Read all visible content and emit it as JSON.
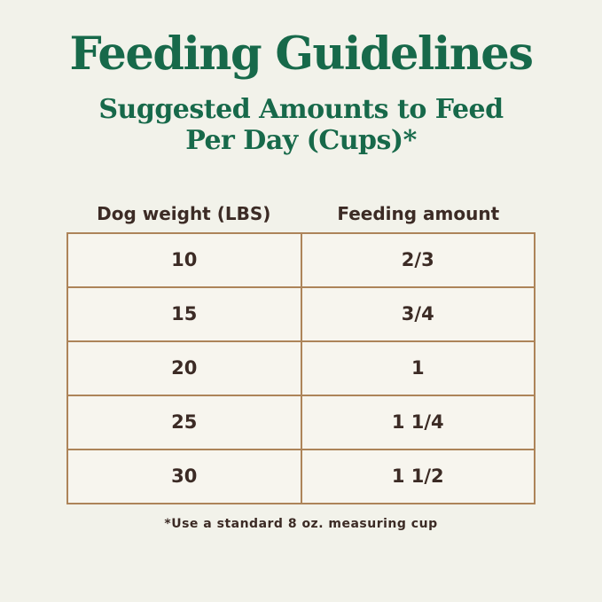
{
  "header": {
    "title": "Feeding Guidelines",
    "subtitle_line1": "Suggested Amounts to Feed",
    "subtitle_line2": "Per Day (Cups)*"
  },
  "table": {
    "columns": [
      "Dog weight (LBS)",
      "Feeding amount"
    ],
    "rows": [
      {
        "weight": "10",
        "amount": "2/3"
      },
      {
        "weight": "15",
        "amount": "3/4"
      },
      {
        "weight": "20",
        "amount": "1"
      },
      {
        "weight": "25",
        "amount": "1 1/4"
      },
      {
        "weight": "30",
        "amount": "1 1/2"
      }
    ]
  },
  "footnote": {
    "text": "*Use a standard 8 oz. measuring cup"
  },
  "colors": {
    "background": "#f2f2ea",
    "cell_bg": "#f7f5ee",
    "title_green": "#17694a",
    "border_tan": "#ad8459",
    "text_brown": "#3c2b25"
  },
  "chart_data": {
    "type": "table",
    "title": "Feeding Guidelines",
    "subtitle": "Suggested Amounts to Feed Per Day (Cups)*",
    "columns": [
      "Dog weight (LBS)",
      "Feeding amount"
    ],
    "rows": [
      [
        "10",
        "2/3"
      ],
      [
        "15",
        "3/4"
      ],
      [
        "20",
        "1"
      ],
      [
        "25",
        "1 1/4"
      ],
      [
        "30",
        "1 1/2"
      ]
    ],
    "footnote": "*Use a standard 8 oz. measuring cup",
    "legend_position": "none",
    "grid": true
  }
}
